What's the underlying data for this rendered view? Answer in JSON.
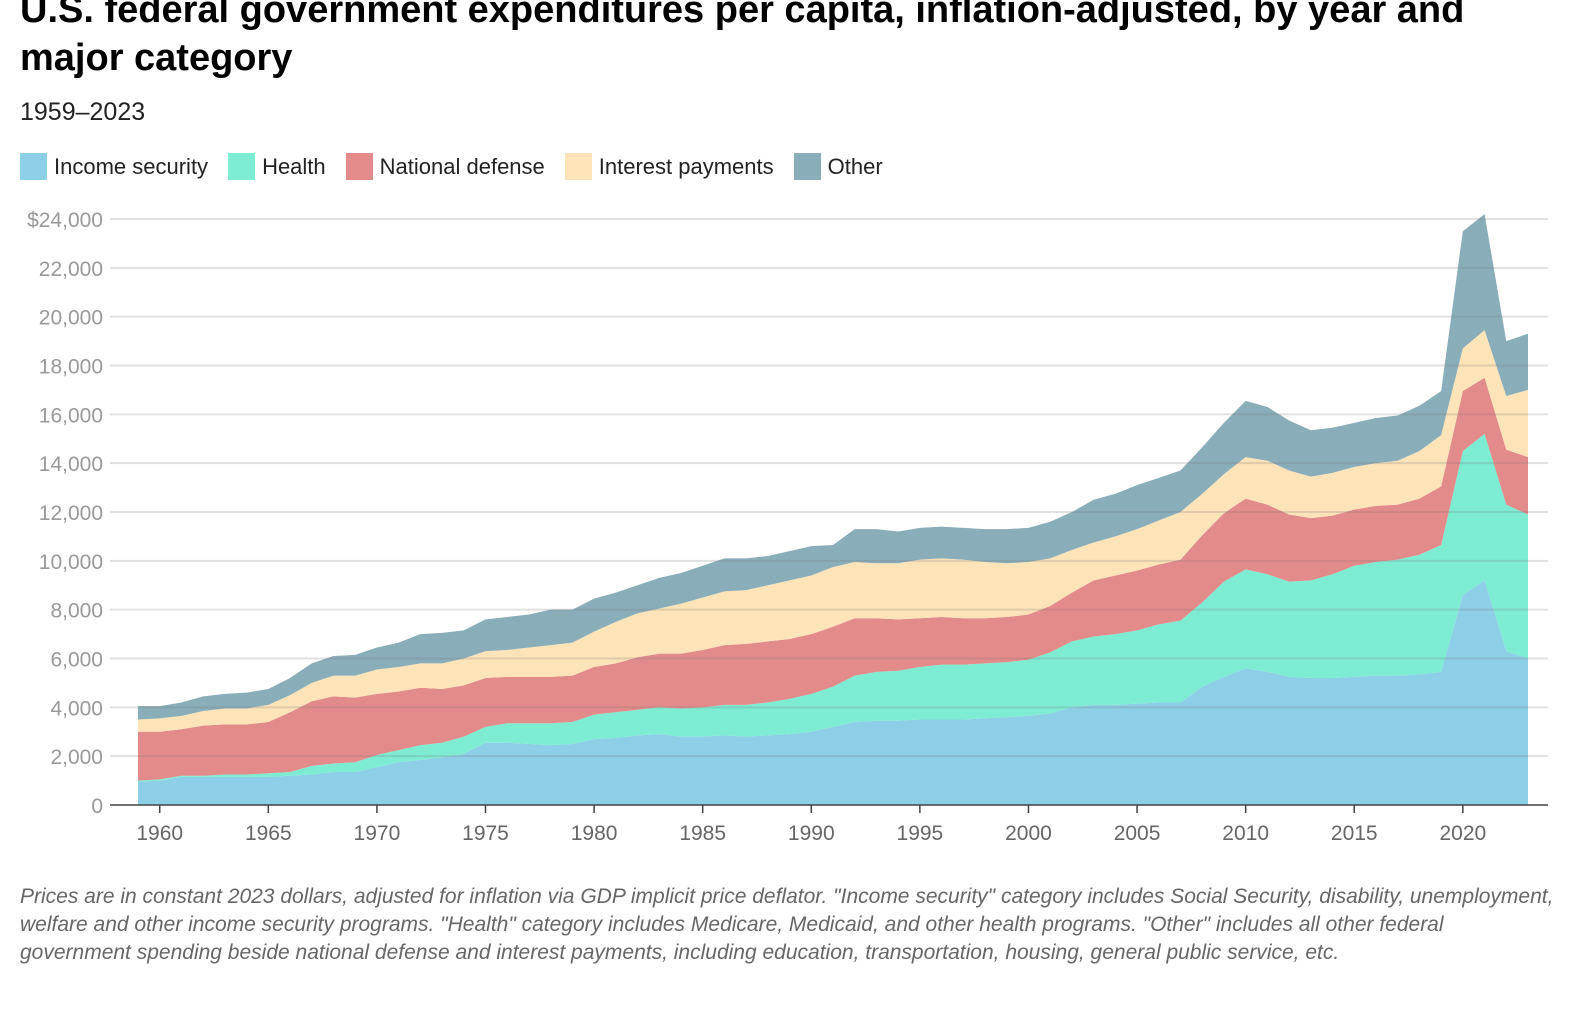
{
  "chart_data": {
    "type": "area",
    "stacked": true,
    "title": "U.S. federal government expenditures per capita, inflation-adjusted, by year and major category",
    "subtitle": "1959–2023",
    "xlabel": "",
    "ylabel": "",
    "xlim": [
      1959,
      2023
    ],
    "ylim": [
      0,
      24000
    ],
    "y_ticks": [
      0,
      2000,
      4000,
      6000,
      8000,
      10000,
      12000,
      14000,
      16000,
      18000,
      20000,
      22000,
      24000
    ],
    "y_tick_labels": [
      "0",
      "2,000",
      "4,000",
      "6,000",
      "8,000",
      "10,000",
      "12,000",
      "14,000",
      "16,000",
      "18,000",
      "20,000",
      "22,000",
      "$24,000"
    ],
    "x_ticks": [
      1960,
      1965,
      1970,
      1975,
      1980,
      1985,
      1990,
      1995,
      2000,
      2005,
      2010,
      2015,
      2020
    ],
    "grid": true,
    "legend_placement": "top-left",
    "x": [
      1959,
      1960,
      1961,
      1962,
      1963,
      1964,
      1965,
      1966,
      1967,
      1968,
      1969,
      1970,
      1971,
      1972,
      1973,
      1974,
      1975,
      1976,
      1977,
      1978,
      1979,
      1980,
      1981,
      1982,
      1983,
      1984,
      1985,
      1986,
      1987,
      1988,
      1989,
      1990,
      1991,
      1992,
      1993,
      1994,
      1995,
      1996,
      1997,
      1998,
      1999,
      2000,
      2001,
      2002,
      2003,
      2004,
      2005,
      2006,
      2007,
      2008,
      2009,
      2010,
      2011,
      2012,
      2013,
      2014,
      2015,
      2016,
      2017,
      2018,
      2019,
      2020,
      2021,
      2022,
      2023
    ],
    "series": [
      {
        "name": "Income security",
        "color": "#8dcfe6",
        "values": [
          950,
          1000,
          1150,
          1150,
          1150,
          1150,
          1150,
          1200,
          1250,
          1350,
          1350,
          1550,
          1750,
          1850,
          1950,
          2100,
          2550,
          2550,
          2500,
          2450,
          2500,
          2700,
          2750,
          2850,
          2900,
          2800,
          2800,
          2850,
          2800,
          2850,
          2900,
          3000,
          3200,
          3400,
          3450,
          3450,
          3500,
          3500,
          3500,
          3550,
          3600,
          3650,
          3750,
          4000,
          4100,
          4100,
          4150,
          4200,
          4200,
          4850,
          5250,
          5600,
          5450,
          5250,
          5200,
          5200,
          5250,
          5300,
          5300,
          5350,
          5450,
          8600,
          9200,
          6300,
          6000
        ]
      },
      {
        "name": "Health",
        "color": "#7eecd2",
        "values": [
          50,
          50,
          50,
          50,
          100,
          100,
          150,
          150,
          350,
          350,
          400,
          500,
          500,
          600,
          600,
          700,
          650,
          800,
          850,
          900,
          900,
          1000,
          1050,
          1050,
          1100,
          1150,
          1200,
          1250,
          1300,
          1350,
          1450,
          1550,
          1650,
          1900,
          2000,
          2050,
          2150,
          2250,
          2250,
          2250,
          2250,
          2300,
          2500,
          2700,
          2800,
          2900,
          3000,
          3200,
          3350,
          3450,
          3900,
          4050,
          4000,
          3900,
          4000,
          4250,
          4550,
          4650,
          4750,
          4900,
          5200,
          5900,
          6000,
          6000,
          5900
        ]
      },
      {
        "name": "National defense",
        "color": "#e38b8a",
        "values": [
          2000,
          1950,
          1900,
          2050,
          2050,
          2050,
          2100,
          2450,
          2650,
          2750,
          2650,
          2500,
          2400,
          2350,
          2200,
          2100,
          2000,
          1900,
          1900,
          1900,
          1900,
          1950,
          2000,
          2150,
          2200,
          2250,
          2350,
          2450,
          2500,
          2500,
          2450,
          2450,
          2450,
          2350,
          2200,
          2100,
          2000,
          1950,
          1900,
          1850,
          1850,
          1850,
          1900,
          2000,
          2300,
          2400,
          2450,
          2450,
          2500,
          2750,
          2800,
          2900,
          2850,
          2750,
          2550,
          2400,
          2300,
          2300,
          2250,
          2300,
          2400,
          2450,
          2300,
          2250,
          2350
        ]
      },
      {
        "name": "Interest payments",
        "color": "#fde3b8",
        "values": [
          500,
          550,
          550,
          600,
          650,
          650,
          700,
          700,
          750,
          850,
          900,
          1000,
          1000,
          1000,
          1050,
          1100,
          1100,
          1100,
          1200,
          1300,
          1350,
          1450,
          1700,
          1800,
          1850,
          2050,
          2150,
          2200,
          2200,
          2300,
          2400,
          2400,
          2450,
          2300,
          2250,
          2300,
          2400,
          2400,
          2400,
          2300,
          2200,
          2150,
          1950,
          1750,
          1550,
          1600,
          1700,
          1800,
          1950,
          1700,
          1600,
          1700,
          1800,
          1800,
          1700,
          1750,
          1750,
          1750,
          1800,
          1950,
          2100,
          1750,
          1950,
          2200,
          2750
        ]
      },
      {
        "name": "Other",
        "color": "#8aadba",
        "values": [
          550,
          500,
          550,
          600,
          600,
          650,
          650,
          700,
          800,
          800,
          850,
          900,
          1000,
          1200,
          1250,
          1150,
          1300,
          1350,
          1350,
          1450,
          1350,
          1350,
          1200,
          1150,
          1250,
          1250,
          1300,
          1350,
          1300,
          1200,
          1200,
          1200,
          900,
          1350,
          1400,
          1300,
          1300,
          1300,
          1300,
          1350,
          1400,
          1400,
          1500,
          1550,
          1750,
          1750,
          1800,
          1750,
          1700,
          1900,
          2100,
          2300,
          2200,
          2050,
          1900,
          1850,
          1800,
          1850,
          1850,
          1850,
          1800,
          4800,
          4750,
          2250,
          2300
        ]
      }
    ],
    "footnote": "Prices are in constant 2023 dollars, adjusted for inflation via GDP implicit price deflator. \"Income security\" category includes Social Security, disability, unemployment, welfare and other income security programs. \"Health\" category includes Medicare, Medicaid, and other health programs. \"Other\" includes all other federal government spending beside national defense and interest payments, including education, transportation, housing, general public service, etc."
  }
}
